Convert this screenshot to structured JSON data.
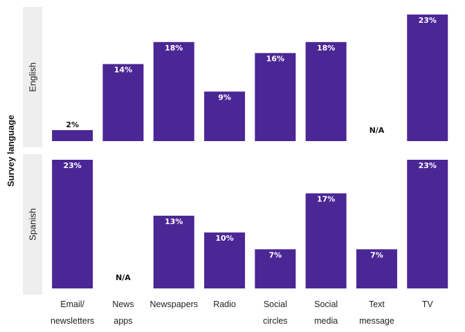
{
  "chart_data": {
    "type": "bar",
    "facet_label": "Survey language",
    "categories": [
      [
        "Email/",
        "newsletters"
      ],
      [
        "News",
        "apps"
      ],
      [
        "Newspapers"
      ],
      [
        "Radio"
      ],
      [
        "Social",
        "circles"
      ],
      [
        "Social",
        "media"
      ],
      [
        "Text",
        "message"
      ],
      [
        "TV"
      ]
    ],
    "panels": [
      {
        "name": "English",
        "values": [
          2,
          14,
          18,
          9,
          16,
          18,
          null,
          23
        ],
        "labels": [
          "2%",
          "14%",
          "18%",
          "9%",
          "16%",
          "18%",
          "N/A",
          "23%"
        ]
      },
      {
        "name": "Spanish",
        "values": [
          23,
          null,
          13,
          10,
          7,
          17,
          7,
          23
        ],
        "labels": [
          "23%",
          "N/A",
          "13%",
          "10%",
          "7%",
          "17%",
          "7%",
          "23%"
        ]
      }
    ],
    "ylim": [
      0,
      23
    ],
    "grid": false,
    "legend": "none",
    "colors": {
      "bar": "#4b2795",
      "strip_background": "#eeeeee",
      "bar_label_inside": "#ffffff",
      "bar_label_outside": "#111111"
    }
  }
}
